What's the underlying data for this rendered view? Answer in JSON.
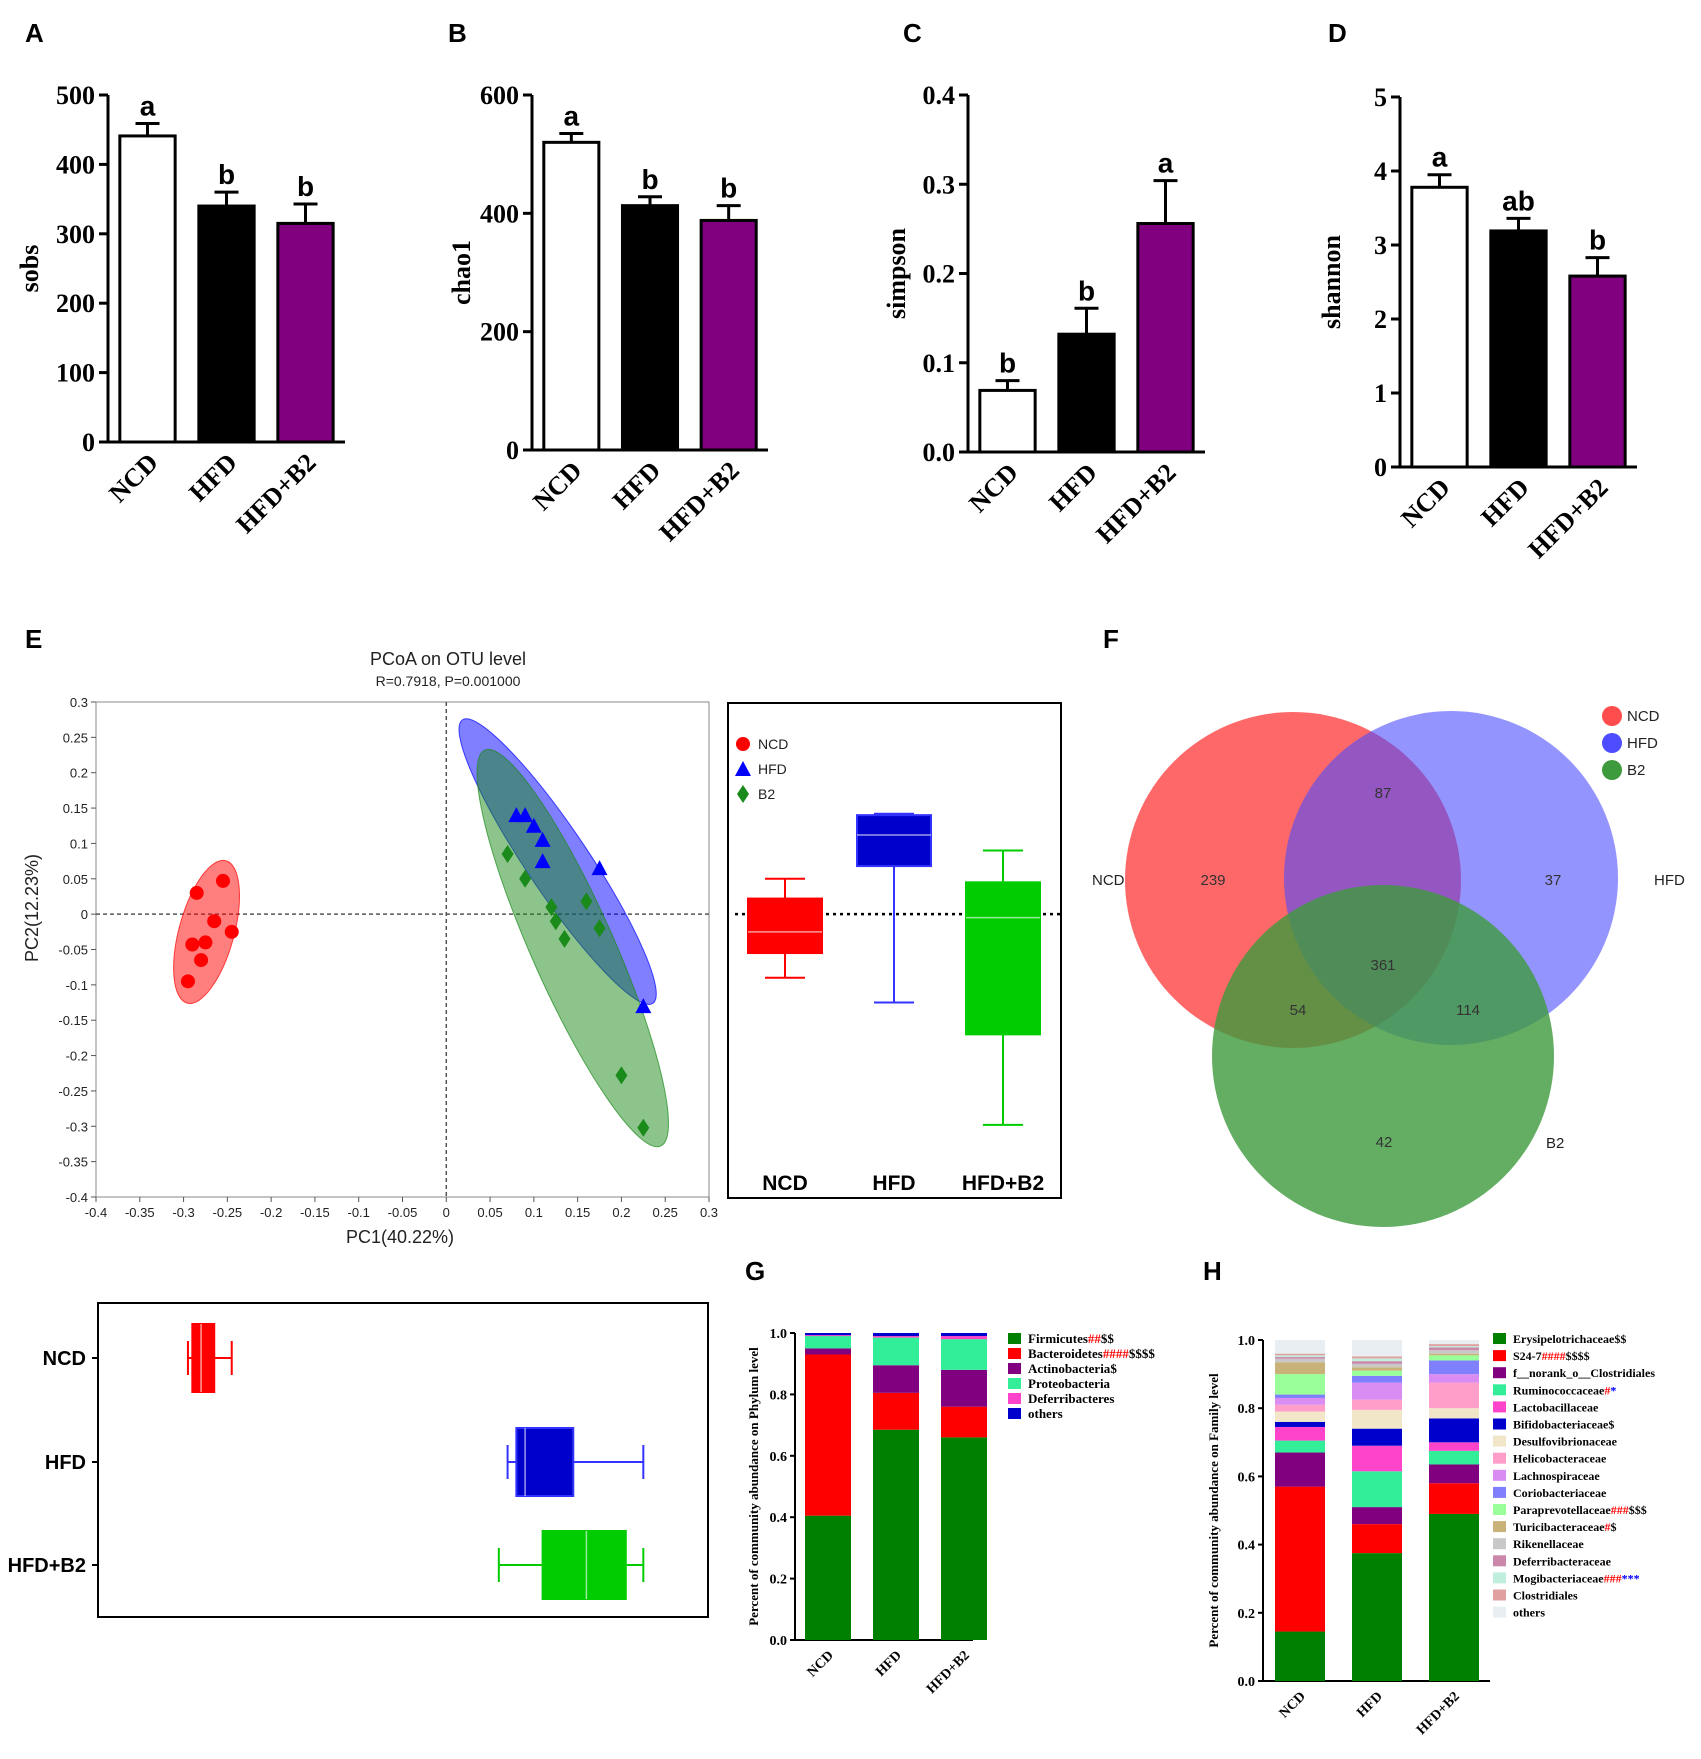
{
  "figure": {
    "panel_letters": [
      "A",
      "B",
      "C",
      "D",
      "E",
      "F",
      "G",
      "H"
    ]
  },
  "colors": {
    "ncd": "#ffffff",
    "hfd": "#000000",
    "b2": "#800080",
    "red": "#ff0000",
    "blue": "#0000ff",
    "green": "#00cc00",
    "darkgreen": "#1a8a1a",
    "venn_red": "#ff4d4d",
    "venn_blue": "#4d4dff",
    "venn_green": "#3d9a3d"
  },
  "chart_data": [
    {
      "id": "A",
      "type": "bar",
      "title": "",
      "xlabel": "",
      "ylabel": "sobs",
      "categories": [
        "NCD",
        "HFD",
        "HFD+B2"
      ],
      "values": [
        441,
        340,
        315
      ],
      "errors": [
        18,
        20,
        28
      ],
      "letters": [
        "a",
        "b",
        "b"
      ],
      "ylim": [
        0,
        500
      ],
      "yticks": [
        0,
        100,
        200,
        300,
        400,
        500
      ]
    },
    {
      "id": "B",
      "type": "bar",
      "title": "",
      "xlabel": "",
      "ylabel": "chao1",
      "categories": [
        "NCD",
        "HFD",
        "HFD+B2"
      ],
      "values": [
        520,
        413,
        388
      ],
      "errors": [
        15,
        15,
        25
      ],
      "letters": [
        "a",
        "b",
        "b"
      ],
      "ylim": [
        0,
        600
      ],
      "yticks": [
        0,
        200,
        400,
        600
      ]
    },
    {
      "id": "C",
      "type": "bar",
      "title": "",
      "xlabel": "",
      "ylabel": "simpson",
      "categories": [
        "NCD",
        "HFD",
        "HFD+B2"
      ],
      "values": [
        0.069,
        0.132,
        0.256
      ],
      "errors": [
        0.011,
        0.029,
        0.048
      ],
      "letters": [
        "b",
        "b",
        "a"
      ],
      "ylim": [
        0,
        0.4
      ],
      "yticks": [
        0.0,
        0.1,
        0.2,
        0.3,
        0.4
      ],
      "ytick_labels": [
        "0.0",
        "0.1",
        "0.2",
        "0.3",
        "0.4"
      ]
    },
    {
      "id": "D",
      "type": "bar",
      "title": "",
      "xlabel": "",
      "ylabel": "shannon",
      "categories": [
        "NCD",
        "HFD",
        "HFD+B2"
      ],
      "values": [
        3.78,
        3.19,
        2.58
      ],
      "errors": [
        0.17,
        0.17,
        0.25
      ],
      "letters": [
        "a",
        "ab",
        "b"
      ],
      "ylim": [
        0,
        5
      ],
      "yticks": [
        0,
        1,
        2,
        3,
        4,
        5
      ]
    },
    {
      "id": "E",
      "type": "scatter",
      "title": "PCoA on OTU level",
      "subtitle": "R=0.7918, P=0.001000",
      "xlabel": "PC1(40.22%)",
      "ylabel": "PC2(12.23%)",
      "xlim": [
        -0.4,
        0.3
      ],
      "ylim": [
        -0.4,
        0.3
      ],
      "xtick_labels": [
        "-0.4",
        "-0.35",
        "-0.3",
        "-0.25",
        "-0.2",
        "-0.15",
        "-0.1",
        "-0.05",
        "0",
        "0.05",
        "0.1",
        "0.15",
        "0.2",
        "0.25",
        "0.3"
      ],
      "ytick_labels": [
        "0.3",
        "0.25",
        "0.2",
        "0.15",
        "0.1",
        "0.05",
        "0",
        "-0.05",
        "-0.1",
        "-0.15",
        "-0.2",
        "-0.25",
        "-0.3",
        "-0.35",
        "-0.4"
      ],
      "legend": [
        "NCD",
        "HFD",
        "B2"
      ],
      "series": [
        {
          "name": "NCD",
          "marker": "circle",
          "x": [
            -0.255,
            -0.285,
            -0.29,
            -0.265,
            -0.275,
            -0.245,
            -0.28,
            -0.295
          ],
          "y": [
            0.047,
            0.03,
            -0.043,
            -0.01,
            -0.04,
            -0.025,
            -0.065,
            -0.095
          ]
        },
        {
          "name": "HFD",
          "marker": "triangle",
          "x": [
            0.08,
            0.09,
            0.1,
            0.11,
            0.11,
            0.175,
            0.225
          ],
          "y": [
            0.14,
            0.14,
            0.125,
            0.105,
            0.075,
            0.065,
            -0.13
          ]
        },
        {
          "name": "B2",
          "marker": "diamond",
          "x": [
            0.07,
            0.09,
            0.12,
            0.125,
            0.135,
            0.16,
            0.175,
            0.2,
            0.225
          ],
          "y": [
            0.085,
            0.05,
            0.01,
            -0.01,
            -0.035,
            0.018,
            -0.02,
            -0.228,
            -0.302
          ]
        }
      ],
      "right_boxplot": {
        "categories": [
          "NCD",
          "HFD",
          "HFD+B2"
        ],
        "boxes": [
          {
            "min": -0.09,
            "q1": -0.055,
            "median": -0.025,
            "q3": 0.022,
            "max": 0.05
          },
          {
            "min": -0.125,
            "q1": 0.068,
            "median": 0.112,
            "q3": 0.14,
            "max": 0.142
          },
          {
            "min": -0.298,
            "q1": -0.17,
            "median": -0.005,
            "q3": 0.045,
            "max": 0.09
          }
        ]
      },
      "bottom_boxplot": {
        "categories": [
          "NCD",
          "HFD",
          "HFD+B2"
        ],
        "boxes": [
          {
            "min": -0.295,
            "q1": -0.29,
            "median": -0.28,
            "q3": -0.265,
            "max": -0.245
          },
          {
            "min": 0.07,
            "q1": 0.08,
            "median": 0.09,
            "q3": 0.145,
            "max": 0.225
          },
          {
            "min": 0.06,
            "q1": 0.11,
            "median": 0.16,
            "q3": 0.205,
            "max": 0.225
          }
        ]
      }
    },
    {
      "id": "F",
      "type": "venn",
      "sets": [
        "NCD",
        "HFD",
        "B2"
      ],
      "legend": [
        "NCD",
        "HFD",
        "B2"
      ],
      "regions": {
        "ncd_only": "239",
        "hfd_only": "37",
        "b2_only": "42",
        "ncd_hfd": "87",
        "ncd_b2": "54",
        "hfd_b2": "114",
        "all": "361"
      }
    },
    {
      "id": "G",
      "type": "bar",
      "stacked": true,
      "ylabel": "Percent of community abundance on Phylum level",
      "categories": [
        "NCD",
        "HFD",
        "HFD+B2"
      ],
      "ylim": [
        0,
        1
      ],
      "ytick_labels": [
        "0.0",
        "0.2",
        "0.4",
        "0.6",
        "0.8",
        "1.0"
      ],
      "series": [
        {
          "name": "Firmicutes",
          "color": "#008000",
          "values": [
            0.405,
            0.685,
            0.66
          ],
          "mark1": "##",
          "mark2": "$$"
        },
        {
          "name": "Bacteroidetes",
          "color": "#ff0000",
          "values": [
            0.525,
            0.12,
            0.1
          ],
          "mark1": "####",
          "mark2": "$$$$"
        },
        {
          "name": "Actinobacteria",
          "color": "#800080",
          "values": [
            0.02,
            0.09,
            0.12
          ],
          "mark1": "",
          "mark2": "$"
        },
        {
          "name": "Proteobacteria",
          "color": "#33ee99",
          "values": [
            0.04,
            0.09,
            0.1
          ],
          "mark1": "",
          "mark2": ""
        },
        {
          "name": "Deferribacteres",
          "color": "#ff44cc",
          "values": [
            0.003,
            0.005,
            0.01
          ],
          "mark1": "",
          "mark2": ""
        },
        {
          "name": "others",
          "color": "#0000cc",
          "values": [
            0.007,
            0.01,
            0.01
          ],
          "mark1": "",
          "mark2": ""
        }
      ]
    },
    {
      "id": "H",
      "type": "bar",
      "stacked": true,
      "ylabel": "Percent of community abundance on Family level",
      "categories": [
        "NCD",
        "HFD",
        "HFD+B2"
      ],
      "ylim": [
        0,
        1
      ],
      "ytick_labels": [
        "0.0",
        "0.2",
        "0.4",
        "0.6",
        "0.8",
        "1.0"
      ],
      "series": [
        {
          "name": "Erysipelotrichaceae",
          "color": "#008000",
          "values": [
            0.145,
            0.375,
            0.49
          ],
          "mark1": "",
          "mark1_color": "#ff0000",
          "mark2": "$$"
        },
        {
          "name": "S24-7",
          "color": "#ff0000",
          "values": [
            0.425,
            0.085,
            0.09
          ],
          "mark1": "####",
          "mark1_color": "#ff0000",
          "mark2": "$$$$"
        },
        {
          "name": "f__norank_o__Clostridiales",
          "color": "#800080",
          "values": [
            0.1,
            0.05,
            0.055
          ],
          "mark1": "",
          "mark1_color": "#ff0000",
          "mark2": ""
        },
        {
          "name": "Ruminococcaceae",
          "color": "#33ee99",
          "values": [
            0.035,
            0.105,
            0.04
          ],
          "mark1": "#",
          "mark1_color": "#ff0000",
          "mark2": "*",
          "mark2_color": "#0000ff"
        },
        {
          "name": "Lactobacillaceae",
          "color": "#ff44cc",
          "values": [
            0.04,
            0.075,
            0.025
          ],
          "mark1": "",
          "mark1_color": "#ff0000",
          "mark2": ""
        },
        {
          "name": "Bifidobacteriaceae",
          "color": "#0000cc",
          "values": [
            0.015,
            0.05,
            0.07
          ],
          "mark1": "",
          "mark1_color": "#ff0000",
          "mark2": "$"
        },
        {
          "name": "Desulfovibrionaceae",
          "color": "#f2e6c9",
          "values": [
            0.03,
            0.055,
            0.03
          ],
          "mark1": "",
          "mark1_color": "#ff0000",
          "mark2": ""
        },
        {
          "name": "Helicobacteraceae",
          "color": "#ff9ec8",
          "values": [
            0.02,
            0.03,
            0.075
          ],
          "mark1": "",
          "mark1_color": "#ff0000",
          "mark2": ""
        },
        {
          "name": "Lachnospiraceae",
          "color": "#d98cf2",
          "values": [
            0.02,
            0.05,
            0.025
          ],
          "mark1": "",
          "mark1_color": "#ff0000",
          "mark2": ""
        },
        {
          "name": "Coriobacteriaceae",
          "color": "#8080ff",
          "values": [
            0.01,
            0.02,
            0.04
          ],
          "mark1": "",
          "mark1_color": "#ff0000",
          "mark2": ""
        },
        {
          "name": "Paraprevotellaceae",
          "color": "#99ff99",
          "values": [
            0.06,
            0.015,
            0.015
          ],
          "mark1": "###",
          "mark1_color": "#ff0000",
          "mark2": "$$$"
        },
        {
          "name": "Turicibacteraceae",
          "color": "#c9b27a",
          "values": [
            0.035,
            0.01,
            0.005
          ],
          "mark1": "#",
          "mark1_color": "#ff0000",
          "mark2": "$"
        },
        {
          "name": "Rikenellaceae",
          "color": "#c8c8c8",
          "values": [
            0.01,
            0.01,
            0.01
          ],
          "mark1": "",
          "mark1_color": "#ff0000",
          "mark2": ""
        },
        {
          "name": "Deferribacteraceae",
          "color": "#cc88aa",
          "values": [
            0.005,
            0.008,
            0.008
          ],
          "mark1": "",
          "mark1_color": "#ff0000",
          "mark2": ""
        },
        {
          "name": "Mogibacteriaceae",
          "color": "#bfeedd",
          "values": [
            0.005,
            0.008,
            0.004
          ],
          "mark1": "###",
          "mark1_color": "#ff0000",
          "mark2": "***",
          "mark2_color": "#0000ff"
        },
        {
          "name": "Clostridiales",
          "color": "#e0a0a0",
          "values": [
            0.005,
            0.006,
            0.006
          ],
          "mark1": "",
          "mark1_color": "#ff0000",
          "mark2": ""
        },
        {
          "name": "others",
          "color": "#e8eef2",
          "values": [
            0.04,
            0.048,
            0.012
          ],
          "mark1": "",
          "mark1_color": "#ff0000",
          "mark2": ""
        }
      ]
    }
  ]
}
